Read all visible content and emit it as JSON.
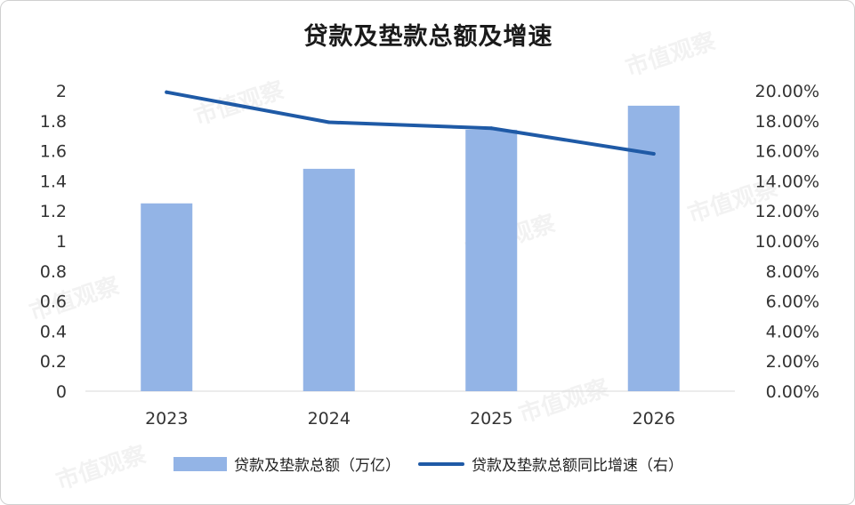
{
  "chart_data": {
    "type": "bar",
    "title": "贷款及垫款总额及增速",
    "categories": [
      "2023",
      "2024",
      "2025",
      "2026"
    ],
    "series": [
      {
        "name": "贷款及垫款总额（万亿）",
        "type": "bar",
        "axis": "left",
        "values": [
          1.25,
          1.48,
          1.74,
          1.9
        ],
        "color": "#93b4e6"
      },
      {
        "name": "贷款及垫款总额同比增速（右）",
        "type": "line",
        "axis": "right",
        "values": [
          19.9,
          17.9,
          17.5,
          15.8
        ],
        "color": "#1f5aa6"
      }
    ],
    "y_left": {
      "min": 0,
      "max": 2,
      "ticks": [
        "0",
        "0.2",
        "0.4",
        "0.6",
        "0.8",
        "1",
        "1.2",
        "1.4",
        "1.6",
        "1.8",
        "2"
      ]
    },
    "y_right": {
      "min": 0,
      "max": 20,
      "ticks": [
        "0.00%",
        "2.00%",
        "4.00%",
        "6.00%",
        "8.00%",
        "10.00%",
        "12.00%",
        "14.00%",
        "16.00%",
        "18.00%",
        "20.00%"
      ]
    },
    "legend_position": "bottom",
    "grid": false
  },
  "watermark": {
    "text": "市值观察"
  }
}
